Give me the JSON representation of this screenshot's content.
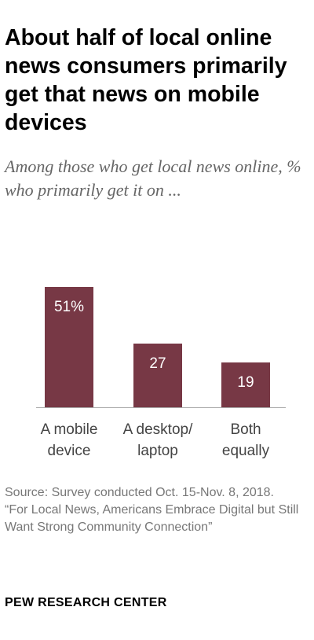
{
  "title": "About half of local online news consumers primarily get that news on mobile devices",
  "subtitle": "Among those who get local news online, % who primarily get it on ...",
  "source": {
    "line1": "Source: Survey conducted Oct. 15-Nov. 8, 2018.",
    "line2": "“For Local News, Americans Embrace Digital but Still Want Strong Community Connection”"
  },
  "publisher": "PEW RESEARCH CENTER",
  "colors": {
    "bar": "#773845",
    "bar_label": "#ffffff",
    "axis": "#aaaaaa",
    "category_text": "#444444"
  },
  "chart_data": {
    "type": "bar",
    "categories": [
      [
        "A mobile",
        "device"
      ],
      [
        "A desktop/",
        "laptop"
      ],
      [
        "Both",
        "equally"
      ]
    ],
    "values": [
      51,
      27,
      19
    ],
    "value_labels": [
      "51%",
      "27",
      "19"
    ],
    "ylim": [
      0,
      60
    ],
    "grid": false
  }
}
